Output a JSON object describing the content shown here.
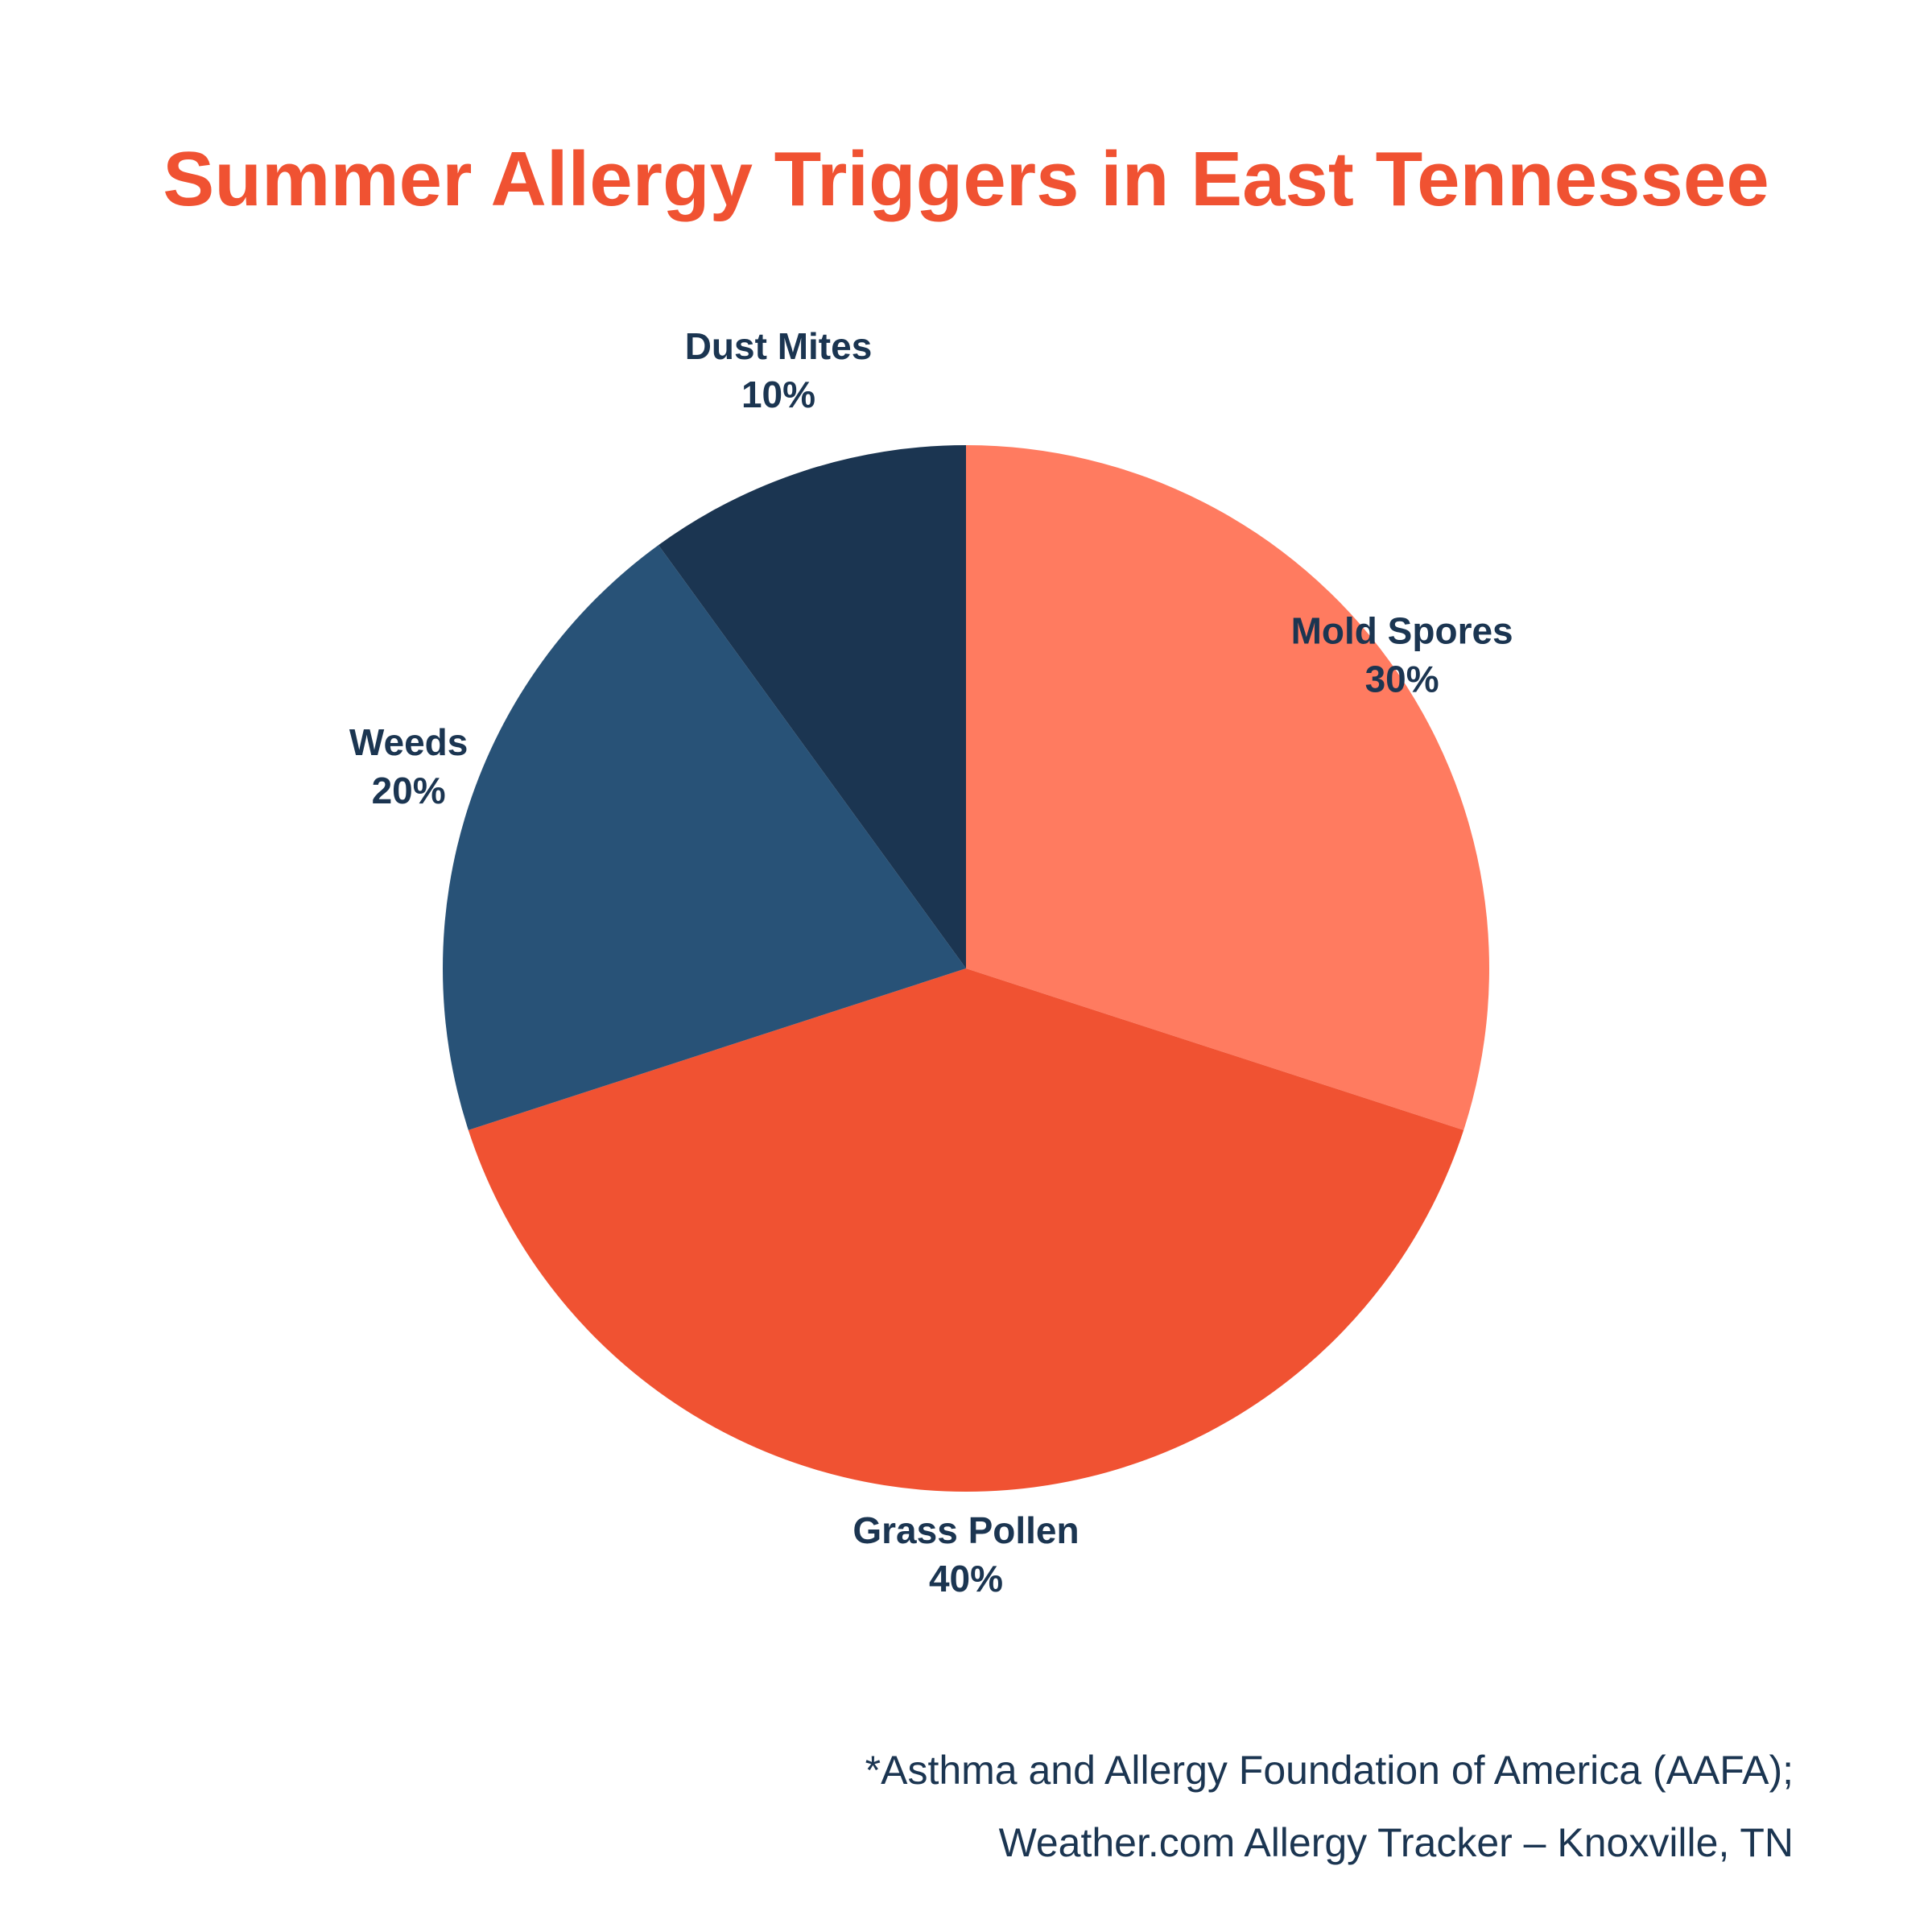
{
  "chart_data": {
    "type": "pie",
    "title": "Summer Allergy Triggers in East Tennessee",
    "slices": [
      {
        "label": "Mold Spores",
        "value": 30,
        "value_label": "30%",
        "color": "#ff7b60"
      },
      {
        "label": "Grass Pollen",
        "value": 40,
        "value_label": "40%",
        "color": "#f05232"
      },
      {
        "label": "Weeds",
        "value": 20,
        "value_label": "20%",
        "color": "#285277"
      },
      {
        "label": "Dust Mites",
        "value": 10,
        "value_label": "10%",
        "color": "#1b3551"
      }
    ],
    "start": "12 o'clock",
    "direction": "clockwise",
    "label_color": "#1b3551",
    "title_color": "#f05232"
  },
  "source": {
    "line1": "*Asthma and Allergy Foundation of America (AAFA);",
    "line2": "Weather.com Allergy Tracker – Knoxville, TN"
  }
}
